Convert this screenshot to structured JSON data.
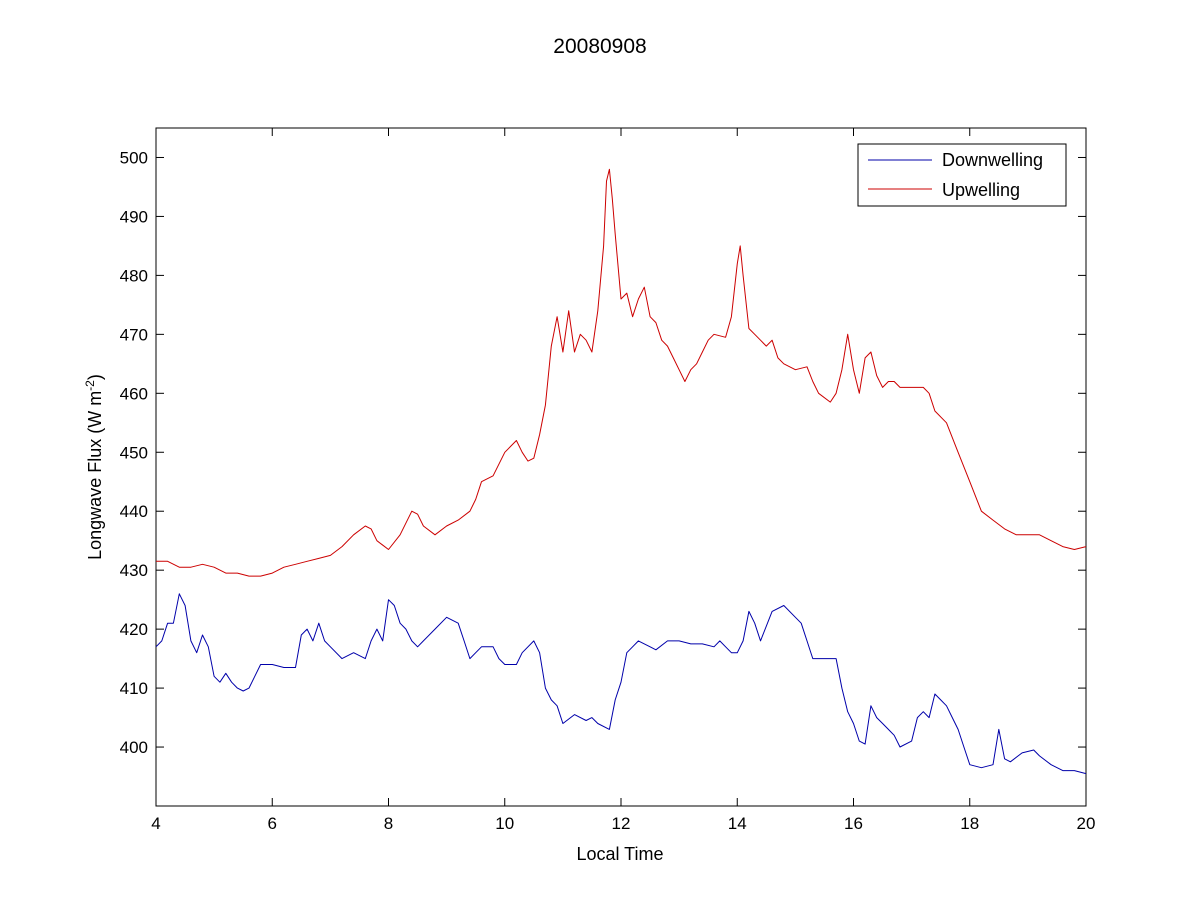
{
  "chart_data": {
    "type": "line",
    "title": "20080908",
    "xlabel": "Local Time",
    "ylabel": "Longwave Flux (W m",
    "ylabel_sup": "-2",
    "ylabel_close": ")",
    "xlim": [
      4,
      20
    ],
    "ylim": [
      390,
      505
    ],
    "xticks": [
      4,
      6,
      8,
      10,
      12,
      14,
      16,
      18,
      20
    ],
    "yticks": [
      400,
      410,
      420,
      430,
      440,
      450,
      460,
      470,
      480,
      490,
      500
    ],
    "grid": false,
    "legend_position": "top-right",
    "series": [
      {
        "name": "Downwelling",
        "color": "#0000aa",
        "points": [
          [
            4.0,
            417
          ],
          [
            4.1,
            418
          ],
          [
            4.2,
            421
          ],
          [
            4.3,
            421
          ],
          [
            4.4,
            426
          ],
          [
            4.5,
            424
          ],
          [
            4.6,
            418
          ],
          [
            4.7,
            416
          ],
          [
            4.8,
            419
          ],
          [
            4.9,
            417
          ],
          [
            5.0,
            412
          ],
          [
            5.1,
            411
          ],
          [
            5.2,
            412.5
          ],
          [
            5.3,
            411
          ],
          [
            5.4,
            410
          ],
          [
            5.5,
            409.5
          ],
          [
            5.6,
            410
          ],
          [
            5.7,
            412
          ],
          [
            5.8,
            414
          ],
          [
            6.0,
            414
          ],
          [
            6.2,
            413.5
          ],
          [
            6.4,
            413.5
          ],
          [
            6.5,
            419
          ],
          [
            6.6,
            420
          ],
          [
            6.7,
            418
          ],
          [
            6.8,
            421
          ],
          [
            6.9,
            418
          ],
          [
            7.0,
            417
          ],
          [
            7.2,
            415
          ],
          [
            7.4,
            416
          ],
          [
            7.6,
            415
          ],
          [
            7.7,
            418
          ],
          [
            7.8,
            420
          ],
          [
            7.9,
            418
          ],
          [
            8.0,
            425
          ],
          [
            8.1,
            424
          ],
          [
            8.2,
            421
          ],
          [
            8.3,
            420
          ],
          [
            8.4,
            418
          ],
          [
            8.5,
            417
          ],
          [
            8.6,
            418
          ],
          [
            8.8,
            420
          ],
          [
            9.0,
            422
          ],
          [
            9.2,
            421
          ],
          [
            9.3,
            418
          ],
          [
            9.4,
            415
          ],
          [
            9.5,
            416
          ],
          [
            9.6,
            417
          ],
          [
            9.8,
            417
          ],
          [
            9.9,
            415
          ],
          [
            10.0,
            414
          ],
          [
            10.2,
            414
          ],
          [
            10.3,
            416
          ],
          [
            10.5,
            418
          ],
          [
            10.6,
            416
          ],
          [
            10.7,
            410
          ],
          [
            10.8,
            408
          ],
          [
            10.9,
            407
          ],
          [
            11.0,
            404
          ],
          [
            11.2,
            405.5
          ],
          [
            11.4,
            404.5
          ],
          [
            11.5,
            405
          ],
          [
            11.6,
            404
          ],
          [
            11.8,
            403
          ],
          [
            11.9,
            408
          ],
          [
            12.0,
            411
          ],
          [
            12.1,
            416
          ],
          [
            12.2,
            417
          ],
          [
            12.3,
            418
          ],
          [
            12.5,
            417
          ],
          [
            12.6,
            416.5
          ],
          [
            12.8,
            418
          ],
          [
            13.0,
            418
          ],
          [
            13.2,
            417.5
          ],
          [
            13.4,
            417.5
          ],
          [
            13.6,
            417
          ],
          [
            13.7,
            418
          ],
          [
            13.8,
            417
          ],
          [
            13.9,
            416
          ],
          [
            14.0,
            416
          ],
          [
            14.1,
            418
          ],
          [
            14.2,
            423
          ],
          [
            14.3,
            421
          ],
          [
            14.4,
            418
          ],
          [
            14.6,
            423
          ],
          [
            14.8,
            424
          ],
          [
            15.0,
            422
          ],
          [
            15.1,
            421
          ],
          [
            15.2,
            418
          ],
          [
            15.3,
            415
          ],
          [
            15.5,
            415
          ],
          [
            15.6,
            415
          ],
          [
            15.7,
            415
          ],
          [
            15.8,
            410
          ],
          [
            15.9,
            406
          ],
          [
            16.0,
            404
          ],
          [
            16.1,
            401
          ],
          [
            16.2,
            400.5
          ],
          [
            16.3,
            407
          ],
          [
            16.4,
            405
          ],
          [
            16.5,
            404
          ],
          [
            16.6,
            403
          ],
          [
            16.7,
            402
          ],
          [
            16.8,
            400
          ],
          [
            17.0,
            401
          ],
          [
            17.1,
            405
          ],
          [
            17.2,
            406
          ],
          [
            17.3,
            405
          ],
          [
            17.4,
            409
          ],
          [
            17.5,
            408
          ],
          [
            17.6,
            407
          ],
          [
            17.7,
            405
          ],
          [
            17.8,
            403
          ],
          [
            17.9,
            400
          ],
          [
            18.0,
            397
          ],
          [
            18.2,
            396.5
          ],
          [
            18.4,
            397
          ],
          [
            18.5,
            403
          ],
          [
            18.6,
            398
          ],
          [
            18.7,
            397.5
          ],
          [
            18.9,
            399
          ],
          [
            19.1,
            399.5
          ],
          [
            19.2,
            398.5
          ],
          [
            19.4,
            397
          ],
          [
            19.6,
            396
          ],
          [
            19.8,
            396
          ],
          [
            20.0,
            395.5
          ]
        ]
      },
      {
        "name": "Upwelling",
        "color": "#cc0000",
        "points": [
          [
            4.0,
            431.5
          ],
          [
            4.2,
            431.5
          ],
          [
            4.4,
            430.5
          ],
          [
            4.6,
            430.5
          ],
          [
            4.8,
            431
          ],
          [
            5.0,
            430.5
          ],
          [
            5.2,
            429.5
          ],
          [
            5.4,
            429.5
          ],
          [
            5.6,
            429
          ],
          [
            5.8,
            429
          ],
          [
            6.0,
            429.5
          ],
          [
            6.2,
            430.5
          ],
          [
            6.4,
            431
          ],
          [
            6.6,
            431.5
          ],
          [
            6.8,
            432
          ],
          [
            7.0,
            432.5
          ],
          [
            7.2,
            434
          ],
          [
            7.4,
            436
          ],
          [
            7.6,
            437.5
          ],
          [
            7.7,
            437
          ],
          [
            7.8,
            435
          ],
          [
            8.0,
            433.5
          ],
          [
            8.2,
            436
          ],
          [
            8.4,
            440
          ],
          [
            8.5,
            439.5
          ],
          [
            8.6,
            437.5
          ],
          [
            8.8,
            436
          ],
          [
            9.0,
            437.5
          ],
          [
            9.2,
            438.5
          ],
          [
            9.4,
            440
          ],
          [
            9.5,
            442
          ],
          [
            9.6,
            445
          ],
          [
            9.8,
            446
          ],
          [
            10.0,
            450
          ],
          [
            10.1,
            451
          ],
          [
            10.2,
            452
          ],
          [
            10.3,
            450
          ],
          [
            10.4,
            448.5
          ],
          [
            10.5,
            449
          ],
          [
            10.6,
            453
          ],
          [
            10.7,
            458
          ],
          [
            10.8,
            468
          ],
          [
            10.9,
            473
          ],
          [
            11.0,
            467
          ],
          [
            11.1,
            474
          ],
          [
            11.2,
            467
          ],
          [
            11.3,
            470
          ],
          [
            11.4,
            469
          ],
          [
            11.5,
            467
          ],
          [
            11.6,
            474
          ],
          [
            11.7,
            485
          ],
          [
            11.75,
            496
          ],
          [
            11.8,
            498
          ],
          [
            11.85,
            493
          ],
          [
            11.9,
            487
          ],
          [
            12.0,
            476
          ],
          [
            12.1,
            477
          ],
          [
            12.2,
            473
          ],
          [
            12.3,
            476
          ],
          [
            12.4,
            478
          ],
          [
            12.5,
            473
          ],
          [
            12.6,
            472
          ],
          [
            12.7,
            469
          ],
          [
            12.8,
            468
          ],
          [
            12.9,
            466
          ],
          [
            13.0,
            464
          ],
          [
            13.1,
            462
          ],
          [
            13.2,
            464
          ],
          [
            13.3,
            465
          ],
          [
            13.4,
            467
          ],
          [
            13.5,
            469
          ],
          [
            13.6,
            470
          ],
          [
            13.8,
            469.5
          ],
          [
            13.9,
            473
          ],
          [
            14.0,
            482
          ],
          [
            14.05,
            485
          ],
          [
            14.1,
            480
          ],
          [
            14.2,
            471
          ],
          [
            14.3,
            470
          ],
          [
            14.4,
            469
          ],
          [
            14.5,
            468
          ],
          [
            14.6,
            469
          ],
          [
            14.7,
            466
          ],
          [
            14.8,
            465
          ],
          [
            15.0,
            464
          ],
          [
            15.2,
            464.5
          ],
          [
            15.3,
            462
          ],
          [
            15.4,
            460
          ],
          [
            15.6,
            458.5
          ],
          [
            15.7,
            460
          ],
          [
            15.8,
            464
          ],
          [
            15.9,
            470
          ],
          [
            16.0,
            464
          ],
          [
            16.1,
            460
          ],
          [
            16.2,
            466
          ],
          [
            16.3,
            467
          ],
          [
            16.4,
            463
          ],
          [
            16.5,
            461
          ],
          [
            16.6,
            462
          ],
          [
            16.7,
            462
          ],
          [
            16.8,
            461
          ],
          [
            17.0,
            461
          ],
          [
            17.2,
            461
          ],
          [
            17.3,
            460
          ],
          [
            17.4,
            457
          ],
          [
            17.6,
            455
          ],
          [
            17.8,
            450
          ],
          [
            18.0,
            445
          ],
          [
            18.2,
            440
          ],
          [
            18.4,
            438.5
          ],
          [
            18.6,
            437
          ],
          [
            18.8,
            436
          ],
          [
            19.0,
            436
          ],
          [
            19.2,
            436
          ],
          [
            19.4,
            435
          ],
          [
            19.6,
            434
          ],
          [
            19.8,
            433.5
          ],
          [
            20.0,
            434
          ]
        ]
      }
    ]
  }
}
